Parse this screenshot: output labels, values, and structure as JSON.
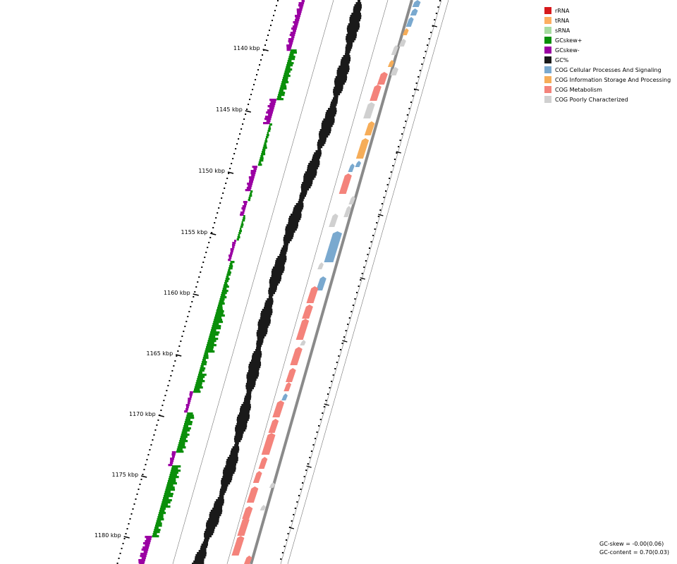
{
  "colors": {
    "rRNA": "#d7191c",
    "tRNA": "#fdae61",
    "sRNA": "#a6dba0",
    "gcskew_pos": "#0a8f0a",
    "gcskew_neg": "#9b00a3",
    "gc_content": "#1a1a1a",
    "cog_cellular": "#7aa9cf",
    "cog_information": "#f6ad59",
    "cog_metabolism": "#f4837b",
    "cog_poorly": "#d0d0d0",
    "backbone": "#8a8a8a"
  },
  "legend": [
    {
      "label": "rRNA",
      "color": "#d7191c"
    },
    {
      "label": "tRNA",
      "color": "#fdae61"
    },
    {
      "label": "sRNA",
      "color": "#a6dba0"
    },
    {
      "label": "GCskew+",
      "color": "#0a8f0a"
    },
    {
      "label": "GCskew-",
      "color": "#9b00a3"
    },
    {
      "label": "GC%",
      "color": "#1a1a1a"
    },
    {
      "label": "COG Cellular Processes And Signaling",
      "color": "#7aa9cf"
    },
    {
      "label": "COG Information Storage And Processing",
      "color": "#f6ad59"
    },
    {
      "label": "COG Metabolism",
      "color": "#f4837b"
    },
    {
      "label": "COG Poorly Characterized",
      "color": "#d0d0d0"
    }
  ],
  "ruler": {
    "labels": [
      "1140 kbp",
      "1145 kbp",
      "1150 kbp",
      "1155 kbp",
      "1160 kbp",
      "1165 kbp",
      "1170 kbp",
      "1175 kbp",
      "1180 kbp"
    ]
  },
  "stats": {
    "gc_skew": "GC-skew = -0.00(0.06)",
    "gc_content": "GC-content = 0.70(0.03)"
  }
}
